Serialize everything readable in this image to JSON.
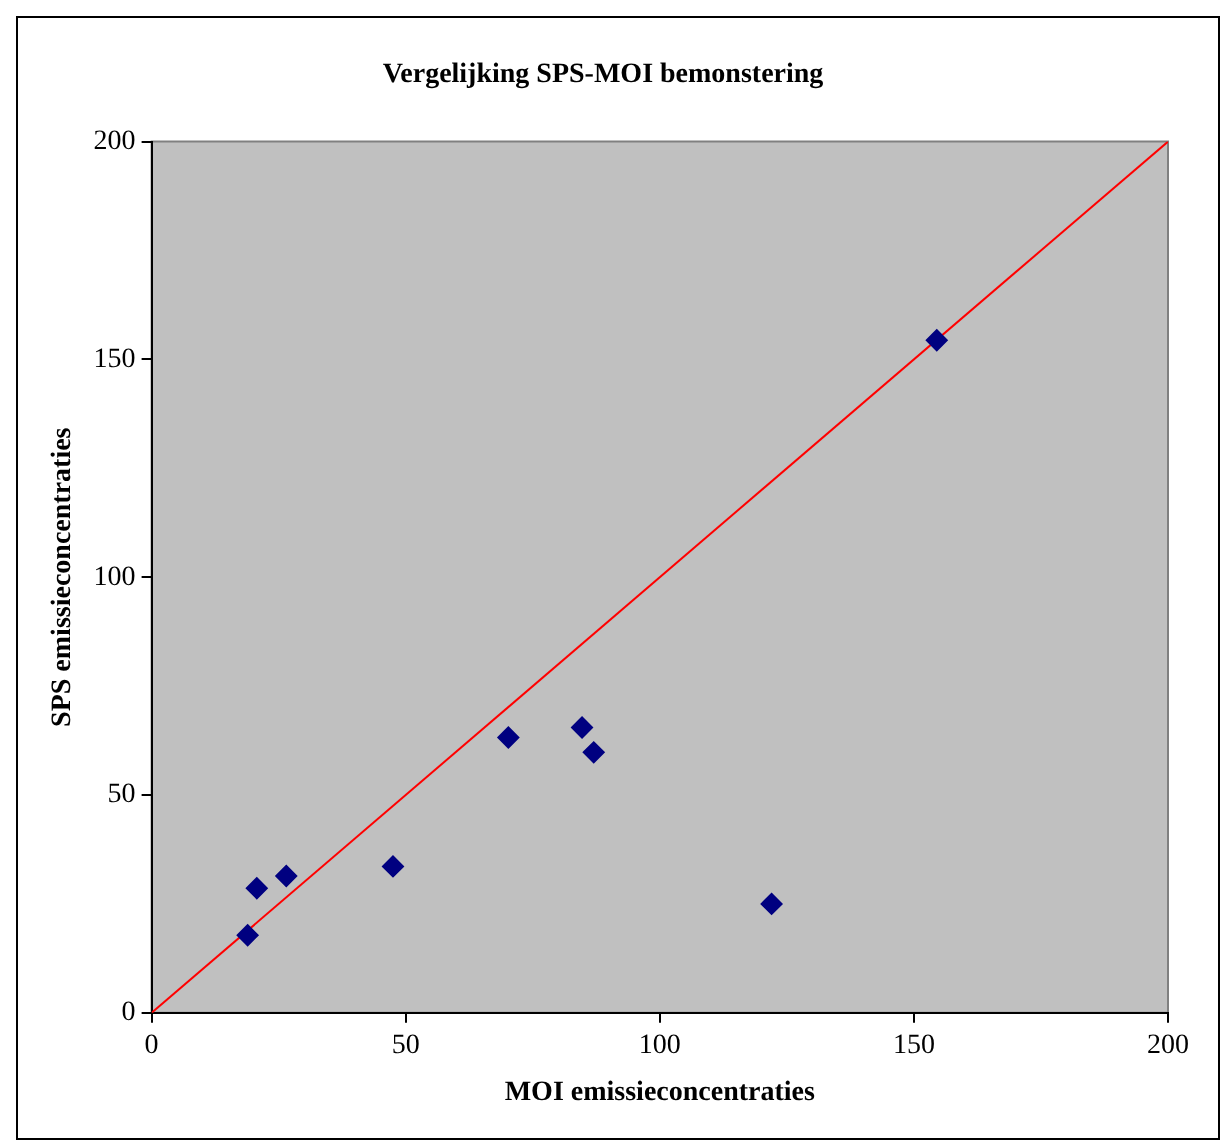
{
  "chart_data": {
    "type": "scatter",
    "title": "Vergelijking SPS-MOI bemonstering",
    "xlabel": "MOI emissieconcentraties",
    "ylabel": "SPS emissieconcentraties",
    "marker": "diamond",
    "grid": false,
    "legend": false,
    "xlim": [
      0,
      200
    ],
    "xticks": [
      0,
      50,
      100,
      150,
      200
    ],
    "ylim": [
      0,
      200
    ],
    "yticks": [
      0,
      50,
      100,
      150,
      200
    ],
    "series": [
      {
        "color": "#000080",
        "x": [
          18.9,
          20.7,
          26.5,
          47.5,
          70.2,
          84.7,
          87.0,
          122,
          154.5
        ],
        "values": [
          17.8,
          28.6,
          31.4,
          33.6,
          63.2,
          65.5,
          59.8,
          25,
          154.4
        ]
      },
      {
        "type": "line",
        "color": "#ff0000",
        "marker": "none",
        "line_style": "solid",
        "x": [
          0,
          200
        ],
        "values": [
          0,
          200
        ]
      }
    ]
  }
}
